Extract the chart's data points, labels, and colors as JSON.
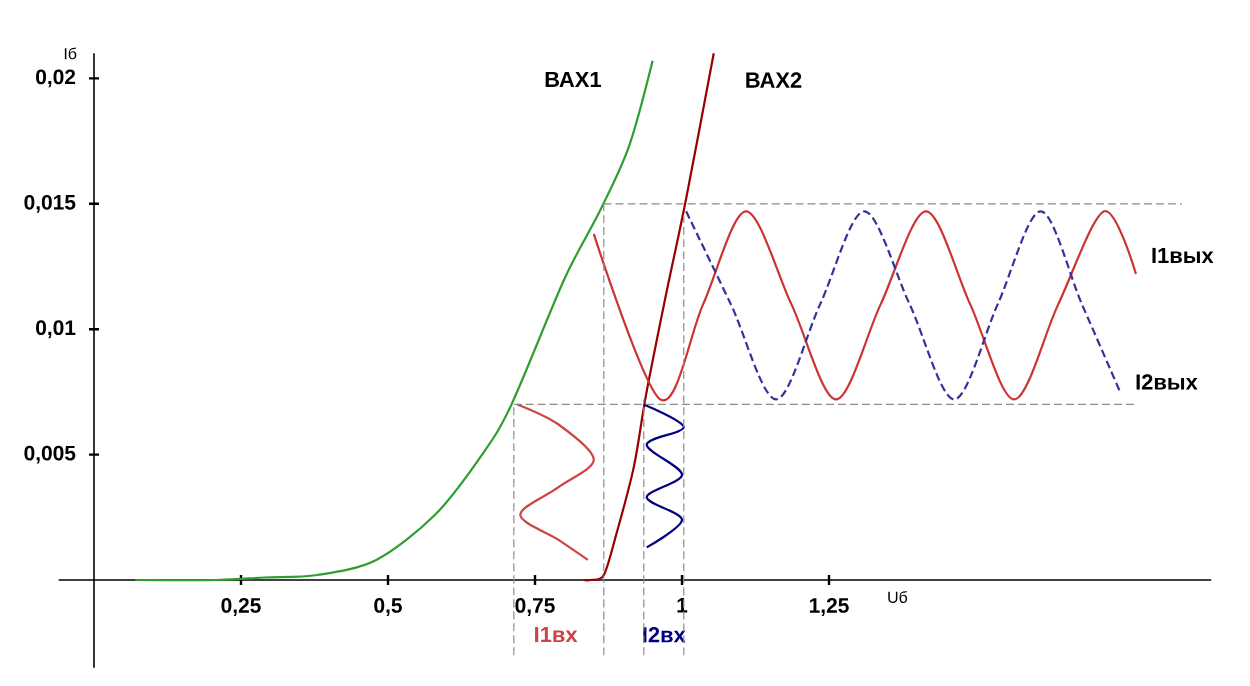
{
  "chart_data": {
    "type": "line",
    "xlabel": "Uб",
    "ylabel": "Iб",
    "xlim": [
      -0.06,
      1.9
    ],
    "ylim": [
      -0.0035,
      0.021
    ],
    "xticks": [
      {
        "value": 0.25,
        "label": "0,25"
      },
      {
        "value": 0.5,
        "label": "0,5"
      },
      {
        "value": 0.75,
        "label": "0,75"
      },
      {
        "value": 1,
        "label": "1"
      },
      {
        "value": 1.25,
        "label": "1,25"
      }
    ],
    "yticks": [
      {
        "value": 0.005,
        "label": "0,005"
      },
      {
        "value": 0.01,
        "label": "0,01"
      },
      {
        "value": 0.015,
        "label": "0,015"
      },
      {
        "value": 0.02,
        "label": "0,02"
      }
    ],
    "grid": false,
    "legend": false,
    "marker": "none",
    "series": [
      {
        "name": "ВАХ1",
        "color": "#2e9e2e",
        "x": [
          0.07,
          0.21,
          0.29,
          0.38,
          0.48,
          0.58,
          0.66,
          0.71,
          0.8,
          0.86,
          0.91,
          0.95
        ],
        "values": [
          0,
          0,
          0.0001,
          0.0002,
          0.0008,
          0.0026,
          0.005,
          0.007,
          0.012,
          0.0147,
          0.0173,
          0.0207
        ]
      },
      {
        "name": "ВАХ2",
        "color": "#990000",
        "x": [
          0.833,
          0.844,
          0.867,
          0.888,
          0.918,
          0.939,
          0.973,
          1.007,
          1.054
        ],
        "values": [
          0,
          0,
          0.0002,
          0.0018,
          0.0045,
          0.0074,
          0.0114,
          0.0152,
          0.021
        ]
      },
      {
        "name": "I1вх",
        "color": "#cc4444",
        "x": [
          0.72,
          0.79,
          0.85,
          0.79,
          0.725,
          0.79,
          0.84
        ],
        "values": [
          0.007,
          0.0062,
          0.0048,
          0.0037,
          0.0026,
          0.0016,
          0.0008
        ]
      },
      {
        "name": "I2вх",
        "color": "#000080",
        "x": [
          0.935,
          1.003,
          0.94,
          1.0,
          0.94,
          1.0,
          0.94
        ],
        "values": [
          0.007,
          0.0061,
          0.0054,
          0.0042,
          0.0033,
          0.0024,
          0.0013
        ]
      },
      {
        "name": "I1вых",
        "color": "#cc3333",
        "x": [
          0.85,
          0.963,
          1.036,
          1.109,
          1.186,
          1.262,
          1.338,
          1.415,
          1.49,
          1.565,
          1.64,
          1.718,
          1.772
        ],
        "values": [
          0.0138,
          0.0072,
          0.011,
          0.0147,
          0.011,
          0.0072,
          0.011,
          0.0147,
          0.011,
          0.0072,
          0.011,
          0.0147,
          0.0122
        ]
      },
      {
        "name": "I2вых",
        "color": "#333399",
        "line_style": "dashed",
        "x": [
          1.007,
          1.083,
          1.16,
          1.235,
          1.31,
          1.387,
          1.463,
          1.537,
          1.61,
          1.68,
          1.745
        ],
        "values": [
          0.0147,
          0.011,
          0.0072,
          0.011,
          0.0147,
          0.011,
          0.0072,
          0.011,
          0.0147,
          0.011,
          0.0075
        ]
      },
      {
        "color": "#8c8c8c",
        "line_style": "dashed",
        "x": [
          0.714,
          1.77
        ],
        "values": [
          0.007,
          0.007
        ]
      },
      {
        "color": "#8c8c8c",
        "line_style": "dashed",
        "x": [
          0.867,
          1.85
        ],
        "values": [
          0.015,
          0.015
        ]
      },
      {
        "color": "#8c8c8c",
        "line_style": "dashed",
        "x": [
          0.714,
          0.714
        ],
        "values": [
          -0.003,
          0.007
        ]
      },
      {
        "color": "#8c8c8c",
        "line_style": "dashed",
        "x": [
          0.867,
          0.867
        ],
        "values": [
          -0.003,
          0.015
        ]
      },
      {
        "color": "#8c8c8c",
        "line_style": "dashed",
        "x": [
          0.935,
          0.935
        ],
        "values": [
          -0.003,
          0.0072
        ]
      },
      {
        "color": "#8c8c8c",
        "line_style": "dashed",
        "x": [
          1.003,
          1.003
        ],
        "values": [
          -0.003,
          0.0147
        ]
      }
    ]
  }
}
